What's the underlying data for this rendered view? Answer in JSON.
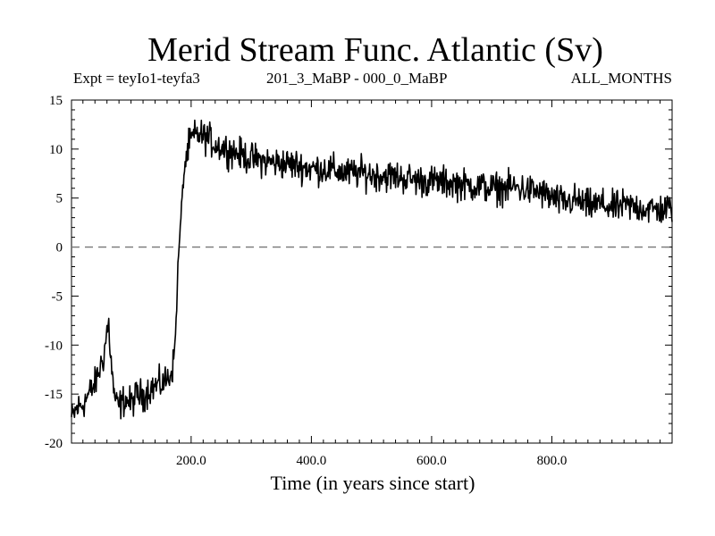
{
  "chart_data": {
    "type": "line",
    "title": "Merid Stream Func. Atlantic (Sv)",
    "subtitle_left": "Expt = teyIo1-teyfa3",
    "subtitle_center": "201_3_MaBP - 000_0_MaBP",
    "subtitle_right": "ALL_MONTHS",
    "xlabel": "Time (in years since start)",
    "ylabel": "",
    "xlim": [
      1,
      1000
    ],
    "ylim": [
      -20,
      15
    ],
    "xticks": [
      200,
      400,
      600,
      800
    ],
    "xtick_labels": [
      "200.0",
      "400.0",
      "600.0",
      "800.0"
    ],
    "yticks": [
      -20,
      -15,
      -10,
      -5,
      0,
      5,
      10,
      15
    ],
    "ytick_labels": [
      "-20",
      "-15",
      "-10",
      "-5",
      "0",
      "5",
      "10",
      "15"
    ],
    "reference_line": {
      "y": 0,
      "style": "dashed"
    },
    "series": [
      {
        "name": "Merid Stream Func. Atlantic",
        "x": [
          1,
          10,
          20,
          30,
          40,
          50,
          55,
          60,
          63,
          66,
          70,
          75,
          80,
          90,
          100,
          110,
          120,
          130,
          140,
          150,
          160,
          165,
          170,
          173,
          176,
          178,
          180,
          183,
          186,
          190,
          195,
          200,
          210,
          220,
          230,
          240,
          250,
          260,
          280,
          300,
          320,
          340,
          360,
          380,
          400,
          420,
          440,
          460,
          480,
          500,
          520,
          540,
          560,
          580,
          600,
          620,
          640,
          660,
          680,
          700,
          720,
          740,
          760,
          780,
          800,
          820,
          840,
          860,
          880,
          900,
          920,
          940,
          960,
          980,
          1000
        ],
        "values": [
          -17.5,
          -16.5,
          -16,
          -15,
          -14,
          -12,
          -11,
          -8.5,
          -8,
          -11,
          -14,
          -16,
          -16.2,
          -15.5,
          -16,
          -15,
          -15.2,
          -14.5,
          -14.2,
          -14,
          -13.5,
          -13,
          -12,
          -10,
          -6,
          -2,
          0,
          3,
          6,
          8.5,
          10,
          11,
          11.5,
          11.3,
          11,
          10.5,
          10.2,
          10,
          9.5,
          9,
          8.8,
          8.6,
          8.5,
          8.3,
          8,
          8,
          7.8,
          7.5,
          7.6,
          7.4,
          7.3,
          7.2,
          7,
          6.8,
          6.7,
          6.6,
          6.5,
          6.3,
          6.2,
          6,
          6,
          6.1,
          5.8,
          5.6,
          5,
          4.5,
          4.8,
          4.2,
          4.4,
          4,
          4.2,
          4.1,
          3.9,
          3.8,
          4
        ]
      }
    ]
  }
}
